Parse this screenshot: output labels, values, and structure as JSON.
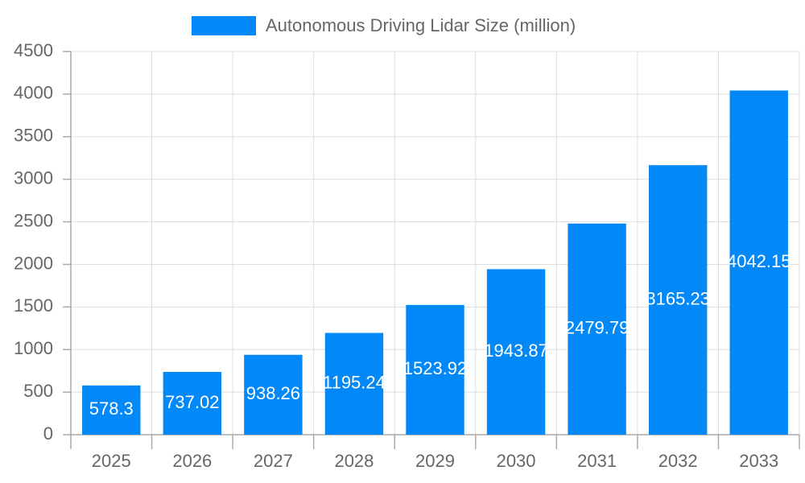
{
  "chart_data": {
    "type": "bar",
    "legend": "Autonomous Driving Lidar Size (million)",
    "categories": [
      "2025",
      "2026",
      "2027",
      "2028",
      "2029",
      "2030",
      "2031",
      "2032",
      "2033"
    ],
    "values": [
      578.3,
      737.02,
      938.26,
      1195.24,
      1523.92,
      1943.87,
      2479.79,
      3165.23,
      4042.15
    ],
    "color": "#0288f7",
    "ylim": [
      0,
      4500
    ],
    "yticks": [
      0,
      500,
      1000,
      1500,
      2000,
      2500,
      3000,
      3500,
      4000,
      4500
    ],
    "grid": true,
    "legend_position": "top"
  }
}
